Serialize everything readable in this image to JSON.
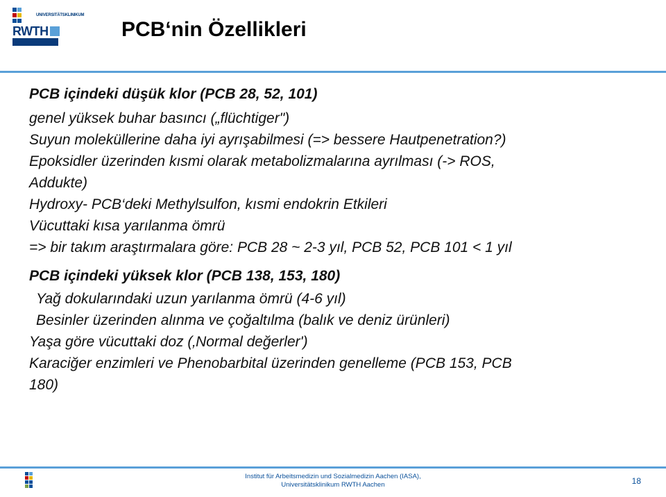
{
  "logos": {
    "uk_label": "UNIVERSITÄTSKLINIKUM",
    "rwth_label": "RWTH",
    "aachen_colors": [
      "#0a3a7a",
      "#0a3a7a",
      "#0a3a7a",
      "#0a3a7a",
      "#0a3a7a",
      "#0a3a7a"
    ],
    "uk_colors": {
      "tl": "#0a509a",
      "tr": "#5aa0d8",
      "ml": "#c00000",
      "mr": "#e6b800",
      "bl": "#0a509a",
      "br": "#0a509a"
    }
  },
  "title": "PCB‘nin Özellikleri",
  "colors": {
    "accent": "#5aa0d8",
    "text": "#111111",
    "footer_text": "#0a509a"
  },
  "content": {
    "heading1": "PCB içindeki düşük klor (PCB 28, 52, 101)",
    "b1_l1": "genel yüksek buhar basıncı („flüchtiger\")",
    "b1_l2": "Suyun moleküllerine daha iyi ayrışabilmesi (=> bessere Hautpenetration?)",
    "b1_l3a": "Epoksidler üzerinden kısmi olarak metabolizmalarına ayrılması (-> ROS,",
    "b1_l3b": "Addukte)",
    "b1_l4": "Hydroxy- PCB‘deki Methylsulfon, kısmi endokrin Etkileri",
    "b1_l5": "Vücuttaki kısa yarılanma ömrü",
    "b1_conclusion": "=> bir takım araştırmalara göre: PCB 28 ~ 2-3 yıl, PCB 52, PCB 101 < 1 yıl",
    "heading2": "PCB içindeki yüksek klor (PCB 138, 153, 180)",
    "b2_l1": "Yağ dokularındaki uzun yarılanma ömrü (4-6 yıl)",
    "b2_l2": "Besinler üzerinden alınma ve çoğaltılma (balık ve deniz ürünleri)",
    "tail1": "Yaşa göre vücuttaki doz (‚Normal değerler')",
    "tail2a": "Karaciğer enzimleri ve  Phenobarbital üzerinden genelleme (PCB 153, PCB",
    "tail2b": "180)"
  },
  "footer": {
    "line1": "Institut für Arbeitsmedizin und Sozialmedizin Aachen (IASA),",
    "line2": "Universitätsklinikum RWTH Aachen",
    "page": "18"
  }
}
